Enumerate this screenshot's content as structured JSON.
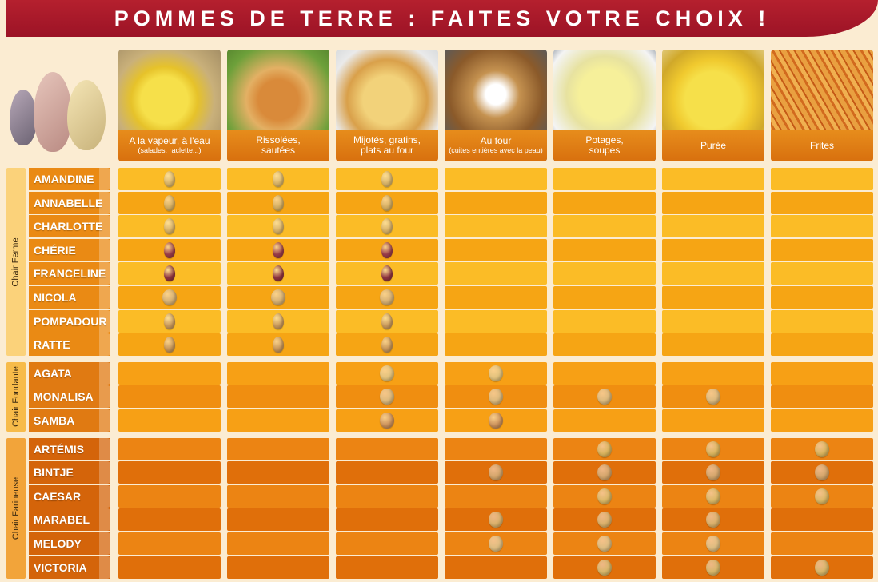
{
  "title": "POMMES DE TERRE : FAITES VOTRE CHOIX !",
  "columns": [
    {
      "key": "vapeur",
      "label": "A la vapeur, à l'eau",
      "sub": "(salades, raclette...)"
    },
    {
      "key": "rissolees",
      "label": "Rissolées,",
      "label2": "sautées"
    },
    {
      "key": "mijotes",
      "label": "Mijotés, gratins,",
      "label2": "plats au four"
    },
    {
      "key": "four",
      "label": "Au four",
      "sub": "(cuites entières avec la peau)"
    },
    {
      "key": "potages",
      "label": "Potages,",
      "label2": "soupes"
    },
    {
      "key": "puree",
      "label": "Purée"
    },
    {
      "key": "frites",
      "label": "Frites"
    }
  ],
  "groups": [
    {
      "label": "Chair Ferme",
      "varieties": [
        {
          "name": "AMANDINE",
          "uses": [
            1,
            1,
            1,
            0,
            0,
            0,
            0
          ],
          "color": "#d9b56a",
          "shape": "long"
        },
        {
          "name": "ANNABELLE",
          "uses": [
            1,
            1,
            1,
            0,
            0,
            0,
            0
          ],
          "color": "#d4ae62",
          "shape": "long"
        },
        {
          "name": "CHARLOTTE",
          "uses": [
            1,
            1,
            1,
            0,
            0,
            0,
            0
          ],
          "color": "#d7b168",
          "shape": "long"
        },
        {
          "name": "CHÉRIE",
          "uses": [
            1,
            1,
            1,
            0,
            0,
            0,
            0
          ],
          "color": "#9a3c4a",
          "shape": "long"
        },
        {
          "name": "FRANCELINE",
          "uses": [
            1,
            1,
            1,
            0,
            0,
            0,
            0
          ],
          "color": "#8f3440",
          "shape": "long"
        },
        {
          "name": "NICOLA",
          "uses": [
            1,
            1,
            1,
            0,
            0,
            0,
            0
          ],
          "color": "#d2ad72",
          "shape": "round"
        },
        {
          "name": "POMPADOUR",
          "uses": [
            1,
            1,
            1,
            0,
            0,
            0,
            0
          ],
          "color": "#c99a5c",
          "shape": "long"
        },
        {
          "name": "RATTE",
          "uses": [
            1,
            1,
            1,
            0,
            0,
            0,
            0
          ],
          "color": "#c8975a",
          "shape": "long"
        }
      ]
    },
    {
      "label": "Chair Fondante",
      "varieties": [
        {
          "name": "AGATA",
          "uses": [
            0,
            0,
            1,
            1,
            0,
            0,
            0
          ],
          "color": "#e0c17c",
          "shape": "round"
        },
        {
          "name": "MONALISA",
          "uses": [
            0,
            0,
            1,
            1,
            1,
            1,
            0
          ],
          "color": "#dab87c",
          "shape": "round"
        },
        {
          "name": "SAMBA",
          "uses": [
            0,
            0,
            1,
            1,
            0,
            0,
            0
          ],
          "color": "#c98f5a",
          "shape": "round"
        }
      ]
    },
    {
      "label": "Chair Farineuse",
      "varieties": [
        {
          "name": "ARTÉMIS",
          "uses": [
            0,
            0,
            0,
            0,
            1,
            1,
            1
          ],
          "color": "#d8b35c",
          "shape": "round"
        },
        {
          "name": "BINTJE",
          "uses": [
            0,
            0,
            0,
            1,
            1,
            1,
            1
          ],
          "color": "#d2a46a",
          "shape": "round"
        },
        {
          "name": "CAESAR",
          "uses": [
            0,
            0,
            0,
            0,
            1,
            1,
            1
          ],
          "color": "#d9b664",
          "shape": "round"
        },
        {
          "name": "MARABEL",
          "uses": [
            0,
            0,
            0,
            1,
            1,
            1,
            0
          ],
          "color": "#d9b06a",
          "shape": "round"
        },
        {
          "name": "MELODY",
          "uses": [
            0,
            0,
            0,
            1,
            1,
            1,
            0
          ],
          "color": "#dcbc80",
          "shape": "round"
        },
        {
          "name": "VICTORIA",
          "uses": [
            0,
            0,
            0,
            0,
            1,
            1,
            1
          ],
          "color": "#d6b668",
          "shape": "round"
        }
      ]
    }
  ],
  "colors": {
    "ferme_light": "#fbbc26",
    "ferme_dark": "#f6a514",
    "fondante_light": "#f7a015",
    "fondante_dark": "#f08e10",
    "farineuse_light": "#ec8413",
    "farineuse_dark": "#e06f0a",
    "name_ferme": "#ea8a14",
    "name_fondante": "#e07a12",
    "name_farineuse": "#d4640a"
  }
}
